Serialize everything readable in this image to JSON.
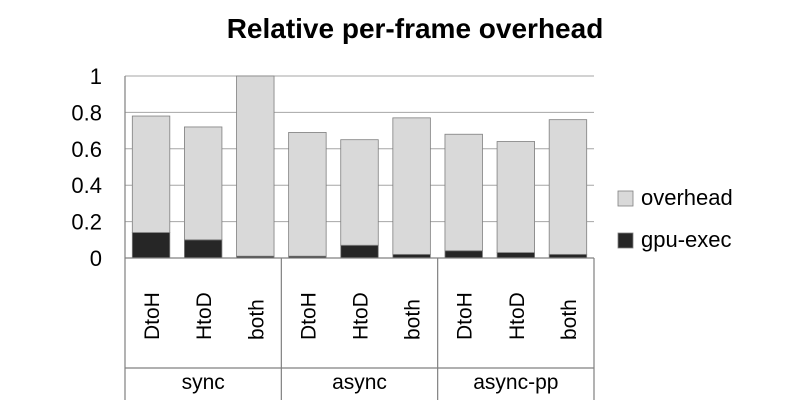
{
  "chart_data": {
    "type": "bar",
    "stacked": true,
    "title": "Relative per-frame overhead",
    "xlabel": "",
    "ylabel": "",
    "ylim": [
      0,
      1
    ],
    "yticks": [
      "0",
      "0.2",
      "0.4",
      "0.6",
      "0.8",
      "1"
    ],
    "grid": true,
    "legend_position": "right",
    "groups": [
      {
        "label": "sync",
        "categories": [
          "DtoH",
          "HtoD",
          "both"
        ]
      },
      {
        "label": "async",
        "categories": [
          "DtoH",
          "HtoD",
          "both"
        ]
      },
      {
        "label": "async-pp",
        "categories": [
          "DtoH",
          "HtoD",
          "both"
        ]
      }
    ],
    "categories": [
      "DtoH",
      "HtoD",
      "both",
      "DtoH",
      "HtoD",
      "both",
      "DtoH",
      "HtoD",
      "both"
    ],
    "series": [
      {
        "name": "gpu-exec",
        "color": "#262626",
        "values": [
          0.14,
          0.1,
          0.01,
          0.01,
          0.07,
          0.02,
          0.04,
          0.03,
          0.02
        ]
      },
      {
        "name": "overhead",
        "color": "#d9d9d9",
        "values": [
          0.64,
          0.62,
          0.99,
          0.68,
          0.58,
          0.75,
          0.64,
          0.61,
          0.74
        ]
      }
    ]
  }
}
